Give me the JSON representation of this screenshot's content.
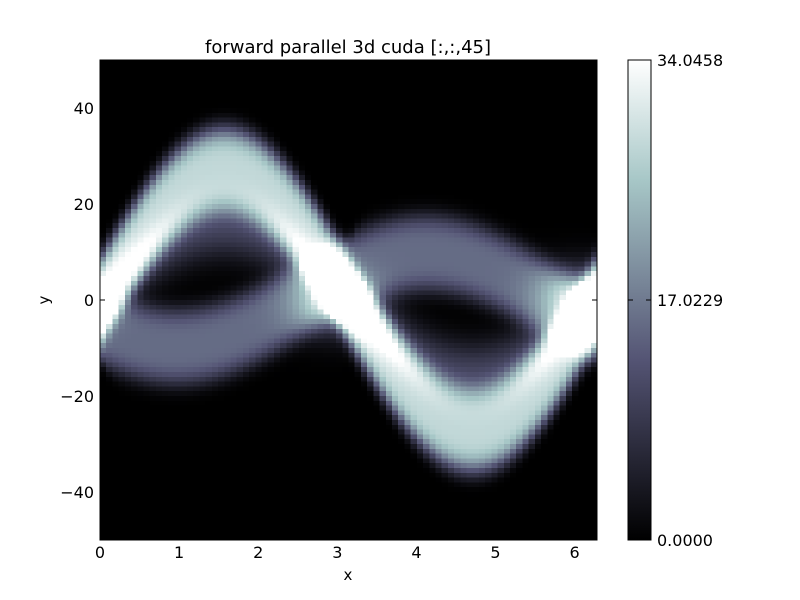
{
  "chart_data": {
    "type": "heatmap",
    "title": "forward parallel 3d cuda [:,:,45]",
    "xlabel": "x",
    "ylabel": "y",
    "xlim": [
      0,
      6.283
    ],
    "ylim": [
      -50,
      50
    ],
    "xticks": [
      "0",
      "1",
      "2",
      "3",
      "4",
      "5",
      "6"
    ],
    "yticks": [
      "40",
      "20",
      "0",
      "−20",
      "−40"
    ],
    "colormap": "bone",
    "colorbar": {
      "min": 0.0,
      "max": 34.0458,
      "tick_labels": [
        "34.0458",
        "17.0229",
        "0.0000"
      ]
    },
    "band": {
      "amplitude": 27,
      "half_width": 9,
      "peak_value": 28,
      "hotspots": [
        {
          "x": 2.95,
          "y": -1,
          "value": 34.0458
        },
        {
          "x": 6.03,
          "y": 1,
          "value": 33.5
        }
      ]
    }
  }
}
